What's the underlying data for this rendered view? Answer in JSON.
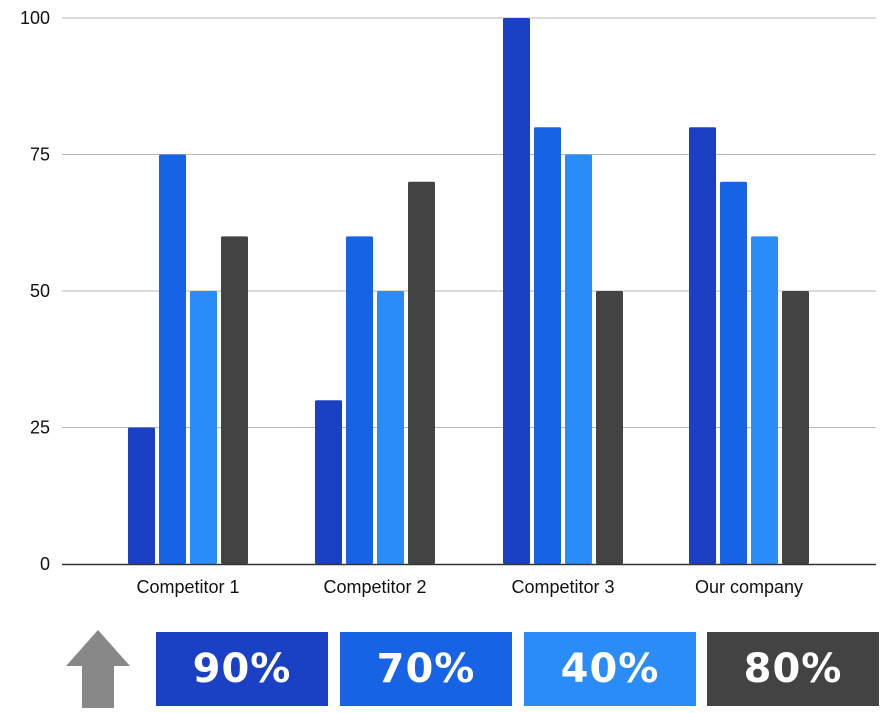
{
  "chart_data": {
    "type": "bar",
    "categories": [
      "Competitor 1",
      "Competitor 2",
      "Competitor 3",
      "Our company"
    ],
    "series": [
      {
        "values": [
          25,
          30,
          100,
          80
        ],
        "color": "#1a40c4"
      },
      {
        "values": [
          75,
          60,
          80,
          70
        ],
        "color": "#1763e6"
      },
      {
        "values": [
          50,
          50,
          75,
          60
        ],
        "color": "#2a8cf7"
      },
      {
        "values": [
          60,
          70,
          50,
          50
        ],
        "color": "#434343"
      }
    ],
    "yticks": [
      "0",
      "25",
      "50",
      "75",
      "100"
    ],
    "ylim": [
      0,
      100
    ],
    "grid": true,
    "legend": "none"
  },
  "summary": {
    "arrow_icon": "up-arrow-icon",
    "arrow_color": "#888888",
    "badges": [
      {
        "label": "90%",
        "color": "#1a40c4"
      },
      {
        "label": "70%",
        "color": "#1763e6"
      },
      {
        "label": "40%",
        "color": "#2a8cf7"
      },
      {
        "label": "80%",
        "color": "#434343"
      }
    ]
  }
}
